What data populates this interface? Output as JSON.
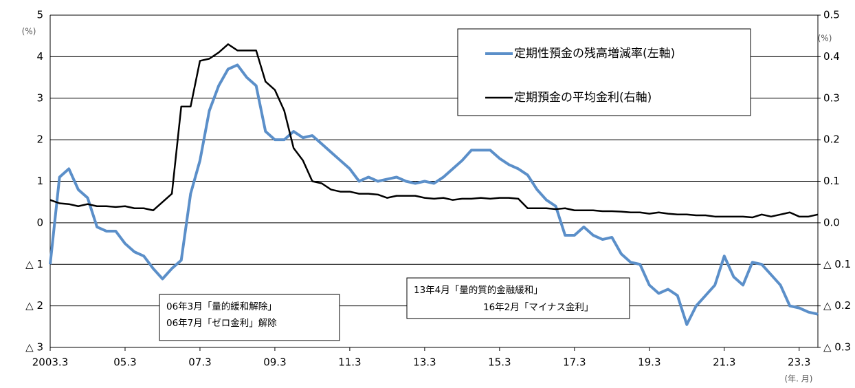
{
  "chart_data": {
    "type": "line",
    "left_unit": "(%)",
    "right_unit": "(%)",
    "x_unit": "(年. 月)",
    "x": [
      2003.17,
      2003.42,
      2003.67,
      2003.92,
      2004.17,
      2004.42,
      2004.67,
      2004.92,
      2005.17,
      2005.42,
      2005.67,
      2005.92,
      2006.17,
      2006.42,
      2006.67,
      2006.92,
      2007.17,
      2007.42,
      2007.67,
      2007.92,
      2008.17,
      2008.42,
      2008.67,
      2008.92,
      2009.17,
      2009.42,
      2009.67,
      2009.92,
      2010.17,
      2010.42,
      2010.67,
      2010.92,
      2011.17,
      2011.42,
      2011.67,
      2011.92,
      2012.17,
      2012.42,
      2012.67,
      2012.92,
      2013.17,
      2013.42,
      2013.67,
      2013.92,
      2014.17,
      2014.42,
      2014.67,
      2014.92,
      2015.17,
      2015.42,
      2015.67,
      2015.92,
      2016.17,
      2016.42,
      2016.67,
      2016.92,
      2017.17,
      2017.42,
      2017.67,
      2017.92,
      2018.17,
      2018.42,
      2018.67,
      2018.92,
      2019.17,
      2019.42,
      2019.67,
      2019.92,
      2020.17,
      2020.42,
      2020.67,
      2020.92,
      2021.17,
      2021.42,
      2021.67,
      2021.92,
      2022.17,
      2022.42,
      2022.67,
      2022.92,
      2023.17,
      2023.42,
      2023.67
    ],
    "xlim": [
      2003.17,
      2023.67
    ],
    "xticks": [
      {
        "value": 2003.17,
        "label": "2003.3"
      },
      {
        "value": 2005.17,
        "label": "05.3"
      },
      {
        "value": 2007.17,
        "label": "07.3"
      },
      {
        "value": 2009.17,
        "label": "09.3"
      },
      {
        "value": 2011.17,
        "label": "11.3"
      },
      {
        "value": 2013.17,
        "label": "13.3"
      },
      {
        "value": 2015.17,
        "label": "15.3"
      },
      {
        "value": 2017.17,
        "label": "17.3"
      },
      {
        "value": 2019.17,
        "label": "19.3"
      },
      {
        "value": 2021.17,
        "label": "21.3"
      },
      {
        "value": 2023.17,
        "label": "23.3"
      }
    ],
    "ylim": [
      -3,
      5
    ],
    "yticks": [
      {
        "value": -3,
        "label": "△ 3"
      },
      {
        "value": -2,
        "label": "△ 2"
      },
      {
        "value": -1,
        "label": "△ 1"
      },
      0,
      1,
      2,
      3,
      4,
      5
    ],
    "y2lim": [
      -0.3,
      0.5
    ],
    "y2ticks": [
      {
        "value": -0.3,
        "label": "△ 0.3"
      },
      {
        "value": -0.2,
        "label": "△ 0.2"
      },
      {
        "value": -0.1,
        "label": "△ 0.1"
      },
      {
        "value": 0,
        "label": "0.0"
      },
      0.1,
      0.2,
      0.3,
      0.4,
      0.5
    ],
    "grid": true,
    "legend": "upper right",
    "series": [
      {
        "name": "定期性預金の残高増減率(左軸)",
        "color": "#5b8fc9",
        "axis": "y",
        "values": [
          -1.0,
          1.1,
          1.3,
          0.8,
          0.6,
          -0.1,
          -0.2,
          -0.2,
          -0.5,
          -0.7,
          -0.8,
          -1.1,
          -1.35,
          -1.1,
          -0.9,
          0.7,
          1.5,
          2.7,
          3.3,
          3.7,
          3.8,
          3.5,
          3.3,
          2.2,
          2.0,
          2.0,
          2.2,
          2.05,
          2.1,
          1.9,
          1.7,
          1.5,
          1.3,
          1.0,
          1.1,
          1.0,
          1.05,
          1.1,
          1.0,
          0.95,
          1.0,
          0.95,
          1.1,
          1.3,
          1.5,
          1.75,
          1.75,
          1.75,
          1.55,
          1.4,
          1.3,
          1.15,
          0.8,
          0.55,
          0.4,
          -0.3,
          -0.3,
          -0.1,
          -0.3,
          -0.4,
          -0.35,
          -0.75,
          -0.95,
          -1.0,
          -1.5,
          -1.7,
          -1.6,
          -1.75,
          -2.45,
          -2.0,
          -1.75,
          -1.5,
          -0.8,
          -1.3,
          -1.5,
          -0.95,
          -1.0,
          -1.25,
          -1.5,
          -2.0,
          -2.05,
          -2.15,
          -2.2
        ]
      },
      {
        "name": "定期預金の平均金利(右軸)",
        "color": "#000000",
        "axis": "y2",
        "values": [
          0.055,
          0.047,
          0.045,
          0.04,
          0.045,
          0.04,
          0.04,
          0.038,
          0.04,
          0.035,
          0.035,
          0.03,
          0.05,
          0.07,
          0.28,
          0.28,
          0.39,
          0.395,
          0.41,
          0.43,
          0.415,
          0.415,
          0.415,
          0.34,
          0.32,
          0.27,
          0.18,
          0.15,
          0.1,
          0.095,
          0.08,
          0.075,
          0.075,
          0.07,
          0.07,
          0.068,
          0.06,
          0.065,
          0.065,
          0.065,
          0.06,
          0.058,
          0.06,
          0.055,
          0.058,
          0.058,
          0.06,
          0.058,
          0.06,
          0.06,
          0.058,
          0.035,
          0.035,
          0.035,
          0.033,
          0.035,
          0.03,
          0.03,
          0.03,
          0.028,
          0.028,
          0.027,
          0.025,
          0.025,
          0.022,
          0.025,
          0.022,
          0.02,
          0.02,
          0.018,
          0.018,
          0.015,
          0.015,
          0.015,
          0.015,
          0.013,
          0.02,
          0.015,
          0.02,
          0.025,
          0.015,
          0.015,
          0.02
        ]
      }
    ],
    "annotations": [
      [
        "06年3月「量的緩和解除」",
        "06年7月「ゼロ金利」解除"
      ],
      [
        "13年4月「量的質的金融緩和」",
        "16年2月「マイナス金利」"
      ]
    ]
  }
}
